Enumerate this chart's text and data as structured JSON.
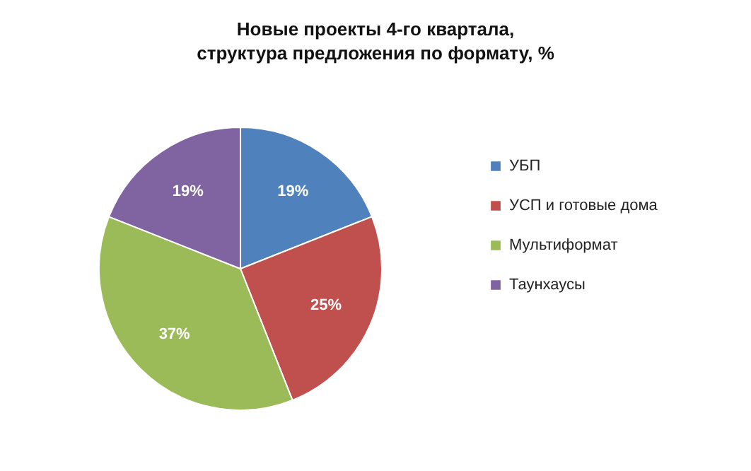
{
  "chart_data": {
    "type": "pie",
    "title": "Новые проекты 4-го квартала,\nструктура предложения по формату, %",
    "categories": [
      "УБП",
      "УСП и  готовые дома",
      "Мультиформат",
      "Таунхаусы"
    ],
    "values": [
      19,
      25,
      37,
      19
    ],
    "colors": [
      "#4f81bd",
      "#c0504d",
      "#9bbb59",
      "#8064a2"
    ],
    "value_labels": [
      "19%",
      "25%",
      "37%",
      "19%"
    ],
    "legend": "right"
  }
}
